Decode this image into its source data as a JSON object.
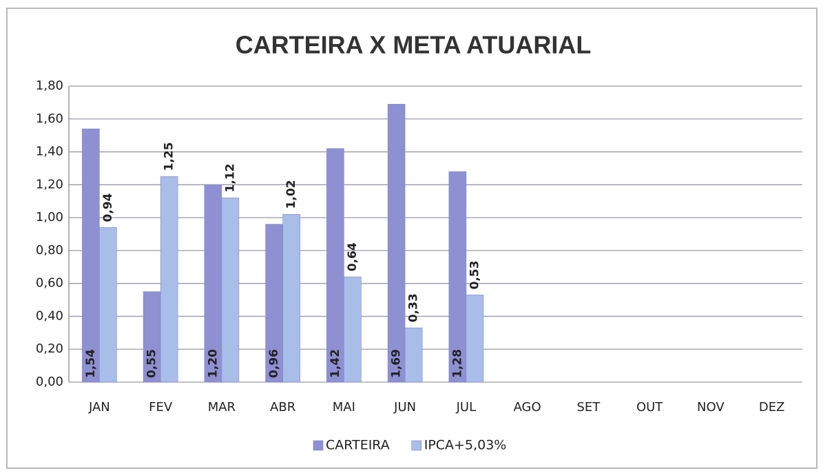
{
  "chart_data": {
    "type": "bar",
    "title": "CARTEIRA X META ATUARIAL",
    "categories": [
      "JAN",
      "FEV",
      "MAR",
      "ABR",
      "MAI",
      "JUN",
      "JUL",
      "AGO",
      "SET",
      "OUT",
      "NOV",
      "DEZ"
    ],
    "series": [
      {
        "name": "CARTEIRA",
        "color": "#8e90d2",
        "values": [
          1.54,
          0.55,
          1.2,
          0.96,
          1.42,
          1.69,
          1.28,
          null,
          null,
          null,
          null,
          null
        ],
        "value_labels": [
          "1,54",
          "0,55",
          "1,20",
          "0,96",
          "1,42",
          "1,69",
          "1,28",
          null,
          null,
          null,
          null,
          null
        ]
      },
      {
        "name": "IPCA+5,03%",
        "color": "#a9bde9",
        "values": [
          0.94,
          1.25,
          1.12,
          1.02,
          0.64,
          0.33,
          0.53,
          null,
          null,
          null,
          null,
          null
        ],
        "value_labels": [
          "0,94",
          "1,25",
          "1,12",
          "1,02",
          "0,64",
          "0,33",
          "0,53",
          null,
          null,
          null,
          null,
          null
        ]
      }
    ],
    "ylim": [
      0,
      1.8
    ],
    "yticks": [
      {
        "value": 0,
        "label": "0,00"
      },
      {
        "value": 0.2,
        "label": "0,20"
      },
      {
        "value": 0.4,
        "label": "0,40"
      },
      {
        "value": 0.6,
        "label": "0,60"
      },
      {
        "value": 0.8,
        "label": "0,80"
      },
      {
        "value": 1.0,
        "label": "1,00"
      },
      {
        "value": 1.2,
        "label": "1,20"
      },
      {
        "value": 1.4,
        "label": "1,40"
      },
      {
        "value": 1.6,
        "label": "1,60"
      },
      {
        "value": 1.8,
        "label": "1,80"
      }
    ],
    "grid": true,
    "legend": "bottom"
  }
}
